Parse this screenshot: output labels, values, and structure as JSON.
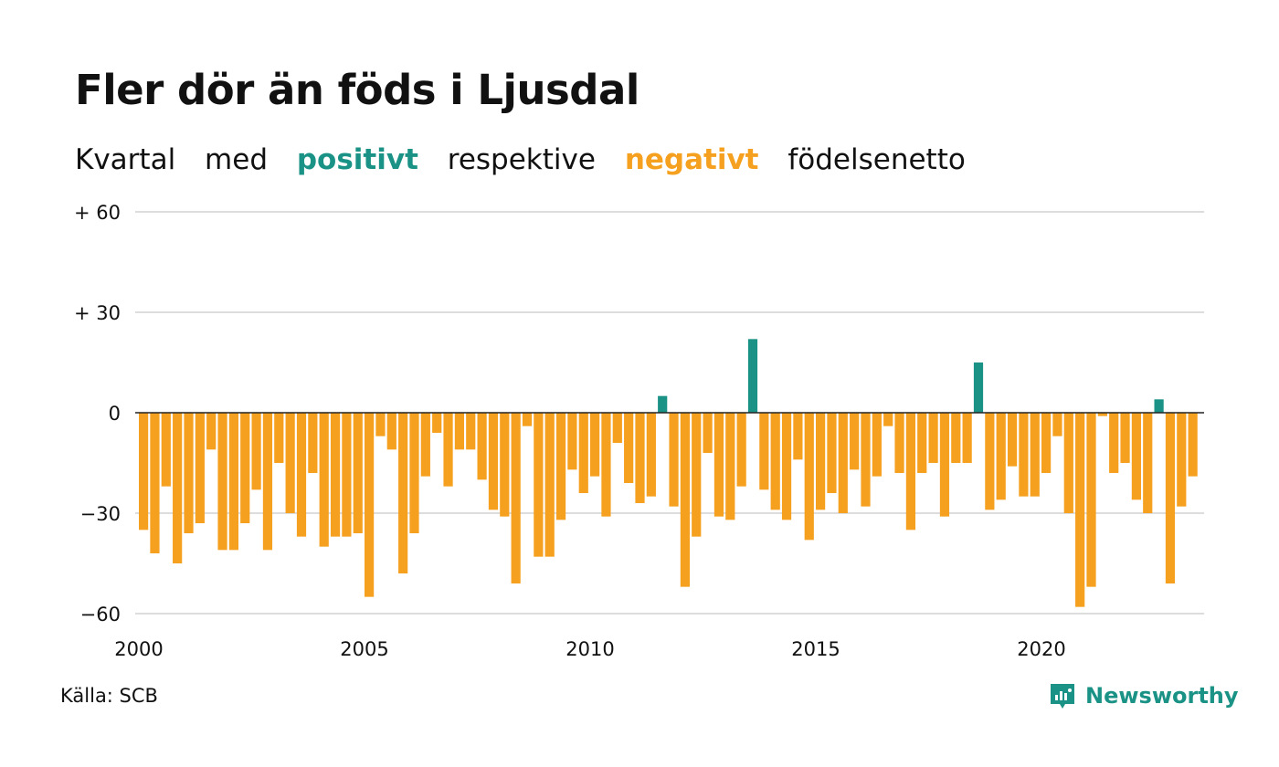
{
  "title": "Fler dör än föds i Ljusdal",
  "subtitle": {
    "w1": "Kvartal",
    "w2": "med",
    "positive": "positivt",
    "w3": "respektive",
    "negative": "negativt",
    "w4": "födelsenetto"
  },
  "source": "Källa: SCB",
  "brand": "Newsworthy",
  "colors": {
    "positive": "#1a9285",
    "negative": "#f5a01e",
    "grid": "#dddddd",
    "zero_line": "#222222"
  },
  "chart_data": {
    "type": "bar",
    "x_start": 2000,
    "frequency": "quarterly",
    "ylim": [
      -60,
      60
    ],
    "ytick_values": [
      60,
      30,
      0,
      -30,
      -60
    ],
    "ytick_labels": [
      "+ 60",
      "+ 30",
      "0",
      "−30",
      "−60"
    ],
    "xtick_labels": [
      "2000",
      "2005",
      "2010",
      "2015",
      "2020"
    ],
    "grid": "horizontal",
    "values": [
      -35,
      -42,
      -22,
      -45,
      -36,
      -33,
      -11,
      -41,
      -41,
      -33,
      -23,
      -41,
      -15,
      -30,
      -37,
      -18,
      -40,
      -37,
      -37,
      -36,
      -55,
      -7,
      -11,
      -48,
      -36,
      -19,
      -6,
      -22,
      -11,
      -11,
      -20,
      -29,
      -31,
      -51,
      -4,
      -43,
      -43,
      -32,
      -17,
      -24,
      -19,
      -31,
      -9,
      -21,
      -27,
      -25,
      5,
      -28,
      -52,
      -37,
      -12,
      -31,
      -32,
      -22,
      22,
      -23,
      -29,
      -32,
      -14,
      -38,
      -29,
      -24,
      -30,
      -17,
      -28,
      -19,
      -4,
      -18,
      -35,
      -18,
      -15,
      -31,
      -15,
      -15,
      15,
      -29,
      -26,
      -16,
      -25,
      -25,
      -18,
      -7,
      -30,
      -58,
      -52,
      -1,
      -18,
      -15,
      -26,
      -30,
      4,
      -51,
      -28,
      -19
    ]
  }
}
